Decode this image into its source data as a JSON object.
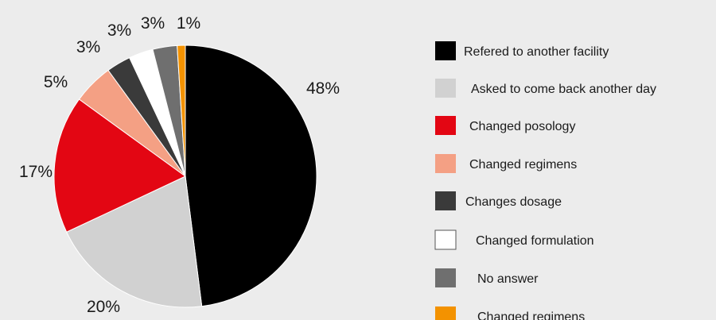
{
  "chart_data": {
    "type": "pie",
    "title": "",
    "legend_position": "right",
    "slices": [
      {
        "label": "Refered to another facility",
        "value": 48,
        "value_label": "48%",
        "color": "#000000"
      },
      {
        "label": "Asked to come back another day",
        "value": 20,
        "value_label": "20%",
        "color": "#d1d1d1"
      },
      {
        "label": "Changed posology",
        "value": 17,
        "value_label": "17%",
        "color": "#e30613"
      },
      {
        "label": "Changed regimens",
        "value": 5,
        "value_label": "5%",
        "color": "#f4a084"
      },
      {
        "label": "Changes dosage",
        "value": 3,
        "value_label": "3%",
        "color": "#3a3a3a"
      },
      {
        "label": "Changed formulation",
        "value": 3,
        "value_label": "3%",
        "color": "#ffffff"
      },
      {
        "label": "No answer",
        "value": 3,
        "value_label": "3%",
        "color": "#6f6f6f"
      },
      {
        "label": "Changed regimens",
        "value": 1,
        "value_label": "1%",
        "color": "#f39200"
      }
    ]
  }
}
